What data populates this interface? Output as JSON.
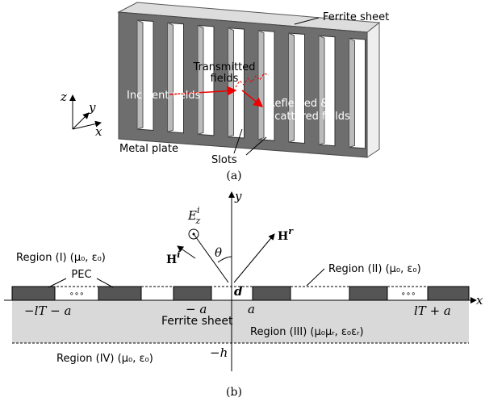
{
  "panel_a": {
    "ferrite_label": "Ferrite sheet",
    "transmitted_label": "Transmitted fields",
    "incident_label": "Incident fields",
    "reflected_label": "Reflected & Scattered fields",
    "metal_label": "Metal plate",
    "slots_label": "Slots",
    "axes": {
      "z": "z",
      "y": "y",
      "x": "x"
    },
    "caption": "(a)"
  },
  "panel_b": {
    "axes": {
      "x": "x",
      "y": "y"
    },
    "field_e": {
      "base": "E",
      "sub": "z",
      "sup": "i"
    },
    "field_hi": {
      "base": "H",
      "sup": "i"
    },
    "field_hr": {
      "base": "H",
      "sup": "r"
    },
    "theta": "θ",
    "d": "d",
    "region1": "Region (I) (μ₀, ε₀)",
    "region2": "Region (II) (μ₀, ε₀)",
    "region3": "Region (III) (μ₀μᵣ, ε₀εᵣ)",
    "region4": "Region (IV) (μ₀, ε₀)",
    "pec": "PEC",
    "dots_left": "∘∘∘",
    "dots_right": "∘∘∘",
    "ferrite_label": "Ferrite sheet",
    "x_minus_lt": "−lT − a",
    "x_minus_a": "− a",
    "x_a": "a",
    "x_lt": "lT + a",
    "y_minus_h": "−h",
    "caption": "(b)"
  }
}
